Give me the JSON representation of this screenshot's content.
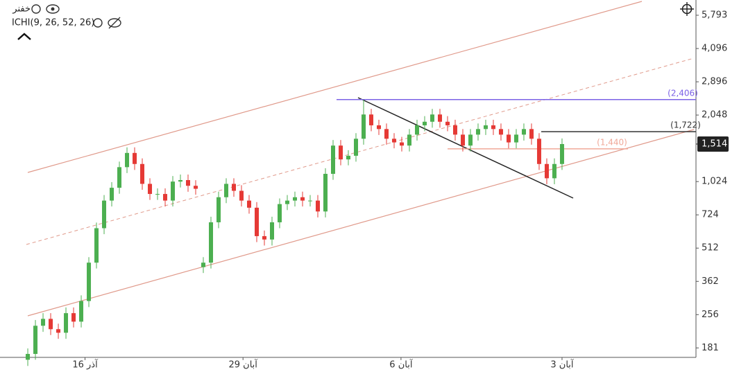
{
  "chart_data": {
    "type": "candlestick",
    "symbol": "خفنر",
    "indicator": "ICHI(9, 26, 52, 26)",
    "log_scale": true,
    "grid": false,
    "up_color": "#4caf50",
    "down_color": "#e53935",
    "x": [
      0,
      1,
      2,
      3,
      4,
      5,
      6,
      7,
      8,
      9,
      10,
      11,
      12,
      13,
      14,
      15,
      16,
      17,
      18,
      19,
      20,
      21,
      22,
      23,
      24,
      25,
      26,
      27,
      28,
      29,
      30,
      31,
      32,
      33,
      34,
      35,
      36,
      37,
      38,
      39,
      40,
      41,
      42,
      43,
      44,
      45,
      46,
      47,
      48,
      49,
      50,
      51,
      52,
      53,
      54,
      55,
      56,
      57,
      58,
      59,
      60,
      61,
      62,
      63,
      64,
      65,
      66,
      67,
      68,
      69,
      70
    ],
    "open": [
      160,
      170,
      228,
      245,
      220,
      212,
      260,
      238,
      295,
      440,
      630,
      840,
      960,
      1190,
      1380,
      1230,
      1000,
      900,
      900,
      840,
      1024,
      1040,
      980,
      420,
      440,
      670,
      870,
      1000,
      930,
      840,
      780,
      580,
      560,
      670,
      810,
      840,
      870,
      840,
      840,
      750,
      1110,
      1490,
      1290,
      1340,
      1600,
      2060,
      1840,
      1770,
      1600,
      1540,
      1490,
      1670,
      1840,
      1910,
      2060,
      1910,
      1840,
      1670,
      1490,
      1670,
      1770,
      1840,
      1770,
      1670,
      1540,
      1670,
      1770,
      1600,
      1230,
      1060,
      1230
    ],
    "high": [
      180,
      242,
      260,
      260,
      233,
      276,
      276,
      313,
      466,
      668,
      890,
      1018,
      1261,
      1463,
      1463,
      1304,
      1060,
      954,
      954,
      1085,
      1102,
      1102,
      1039,
      466,
      710,
      922,
      1060,
      1060,
      986,
      890,
      827,
      615,
      710,
      859,
      890,
      922,
      922,
      890,
      890,
      1177,
      1579,
      1579,
      1420,
      1696,
      2406,
      2184,
      1950,
      1876,
      1696,
      1632,
      1770,
      1950,
      2025,
      2184,
      2184,
      2025,
      1950,
      1770,
      1770,
      1876,
      1950,
      1950,
      1876,
      1770,
      1770,
      1876,
      1876,
      1696,
      1304,
      1304,
      1605
    ],
    "low": [
      150,
      160,
      214,
      207,
      199,
      199,
      224,
      224,
      277,
      414,
      592,
      790,
      902,
      1119,
      1156,
      940,
      846,
      846,
      790,
      790,
      963,
      921,
      893,
      395,
      414,
      630,
      818,
      874,
      790,
      733,
      545,
      526,
      526,
      630,
      761,
      790,
      790,
      790,
      705,
      705,
      1043,
      1213,
      1213,
      1260,
      1504,
      1730,
      1664,
      1504,
      1448,
      1401,
      1401,
      1570,
      1730,
      1795,
      1795,
      1730,
      1570,
      1401,
      1401,
      1570,
      1664,
      1664,
      1570,
      1448,
      1448,
      1570,
      1504,
      1156,
      996,
      996,
      1156
    ],
    "close": [
      170,
      228,
      245,
      220,
      212,
      260,
      238,
      295,
      440,
      630,
      840,
      960,
      1190,
      1380,
      1230,
      1000,
      900,
      900,
      840,
      1024,
      1040,
      980,
      950,
      440,
      670,
      870,
      1000,
      930,
      840,
      780,
      580,
      560,
      670,
      810,
      840,
      870,
      840,
      840,
      750,
      1110,
      1490,
      1290,
      1340,
      1600,
      2060,
      1840,
      1770,
      1600,
      1540,
      1490,
      1670,
      1840,
      1910,
      2060,
      1910,
      1840,
      1670,
      1490,
      1670,
      1770,
      1840,
      1770,
      1670,
      1540,
      1670,
      1770,
      1600,
      1230,
      1060,
      1230,
      1514
    ],
    "xlim": [
      -3.64,
      87.55
    ],
    "xticks": [
      {
        "value": 7.5,
        "label": "آذر 16"
      },
      {
        "value": 28.2,
        "label": "آبان 29"
      },
      {
        "value": 48.9,
        "label": "آبان 6"
      },
      {
        "value": 70,
        "label": "آبان 3"
      }
    ],
    "ylim": [
      164,
      6790
    ],
    "yticks": [
      181,
      256,
      362,
      512,
      724,
      {
        "value": 1024,
        "label": "1,024"
      },
      {
        "value": 2048,
        "label": "2,048"
      },
      {
        "value": 2896,
        "label": "2,896"
      },
      {
        "value": 4096,
        "label": "4,096"
      },
      {
        "value": 5793,
        "label": "5,793"
      }
    ],
    "price_tag": {
      "value": 1514,
      "label": "1,514"
    },
    "price_lines": [
      {
        "value": 2406,
        "label": "(2,406)",
        "color": "#7b61e6"
      },
      {
        "value": 1722,
        "label": "(1,722)",
        "color": "#333333"
      },
      {
        "value": 1440,
        "label": "(1,440)",
        "color": "#f0a898"
      }
    ]
  }
}
